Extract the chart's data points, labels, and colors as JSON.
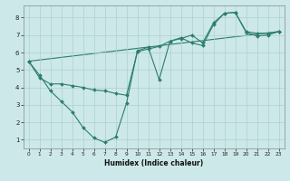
{
  "bg_color": "#cce8e8",
  "line_color": "#2d7d6e",
  "grid_color": "#aed0d0",
  "xlabel": "Humidex (Indice chaleur)",
  "ylim": [
    0.5,
    8.7
  ],
  "xlim": [
    -0.5,
    23.5
  ],
  "yticks": [
    1,
    2,
    3,
    4,
    5,
    6,
    7,
    8
  ],
  "xticks": [
    0,
    1,
    2,
    3,
    4,
    5,
    6,
    7,
    8,
    9,
    10,
    11,
    12,
    13,
    14,
    15,
    16,
    17,
    18,
    19,
    20,
    21,
    22,
    23
  ],
  "line1_x": [
    0,
    1,
    2,
    3,
    4,
    5,
    6,
    7,
    8,
    9,
    10,
    11,
    12,
    13,
    14,
    15,
    16,
    17,
    18,
    19,
    20,
    21,
    22,
    23
  ],
  "line1_y": [
    5.5,
    4.7,
    3.8,
    3.2,
    2.6,
    1.7,
    1.1,
    0.85,
    1.15,
    3.1,
    6.1,
    6.3,
    4.45,
    6.65,
    6.8,
    7.0,
    6.55,
    7.7,
    8.25,
    8.3,
    7.2,
    7.1,
    7.1,
    7.2
  ],
  "line2_x": [
    0,
    1,
    2,
    3,
    4,
    5,
    6,
    7,
    8,
    9,
    10,
    11,
    12,
    13,
    14,
    15,
    16,
    17,
    18,
    19,
    20,
    21,
    22,
    23
  ],
  "line2_y": [
    5.5,
    4.55,
    4.2,
    4.2,
    4.1,
    4.0,
    3.85,
    3.8,
    3.65,
    3.55,
    6.05,
    6.2,
    6.35,
    6.65,
    6.85,
    6.55,
    6.4,
    7.6,
    8.25,
    8.3,
    7.15,
    6.95,
    7.0,
    7.2
  ],
  "line3_x": [
    0,
    23
  ],
  "line3_y": [
    5.5,
    7.2
  ]
}
